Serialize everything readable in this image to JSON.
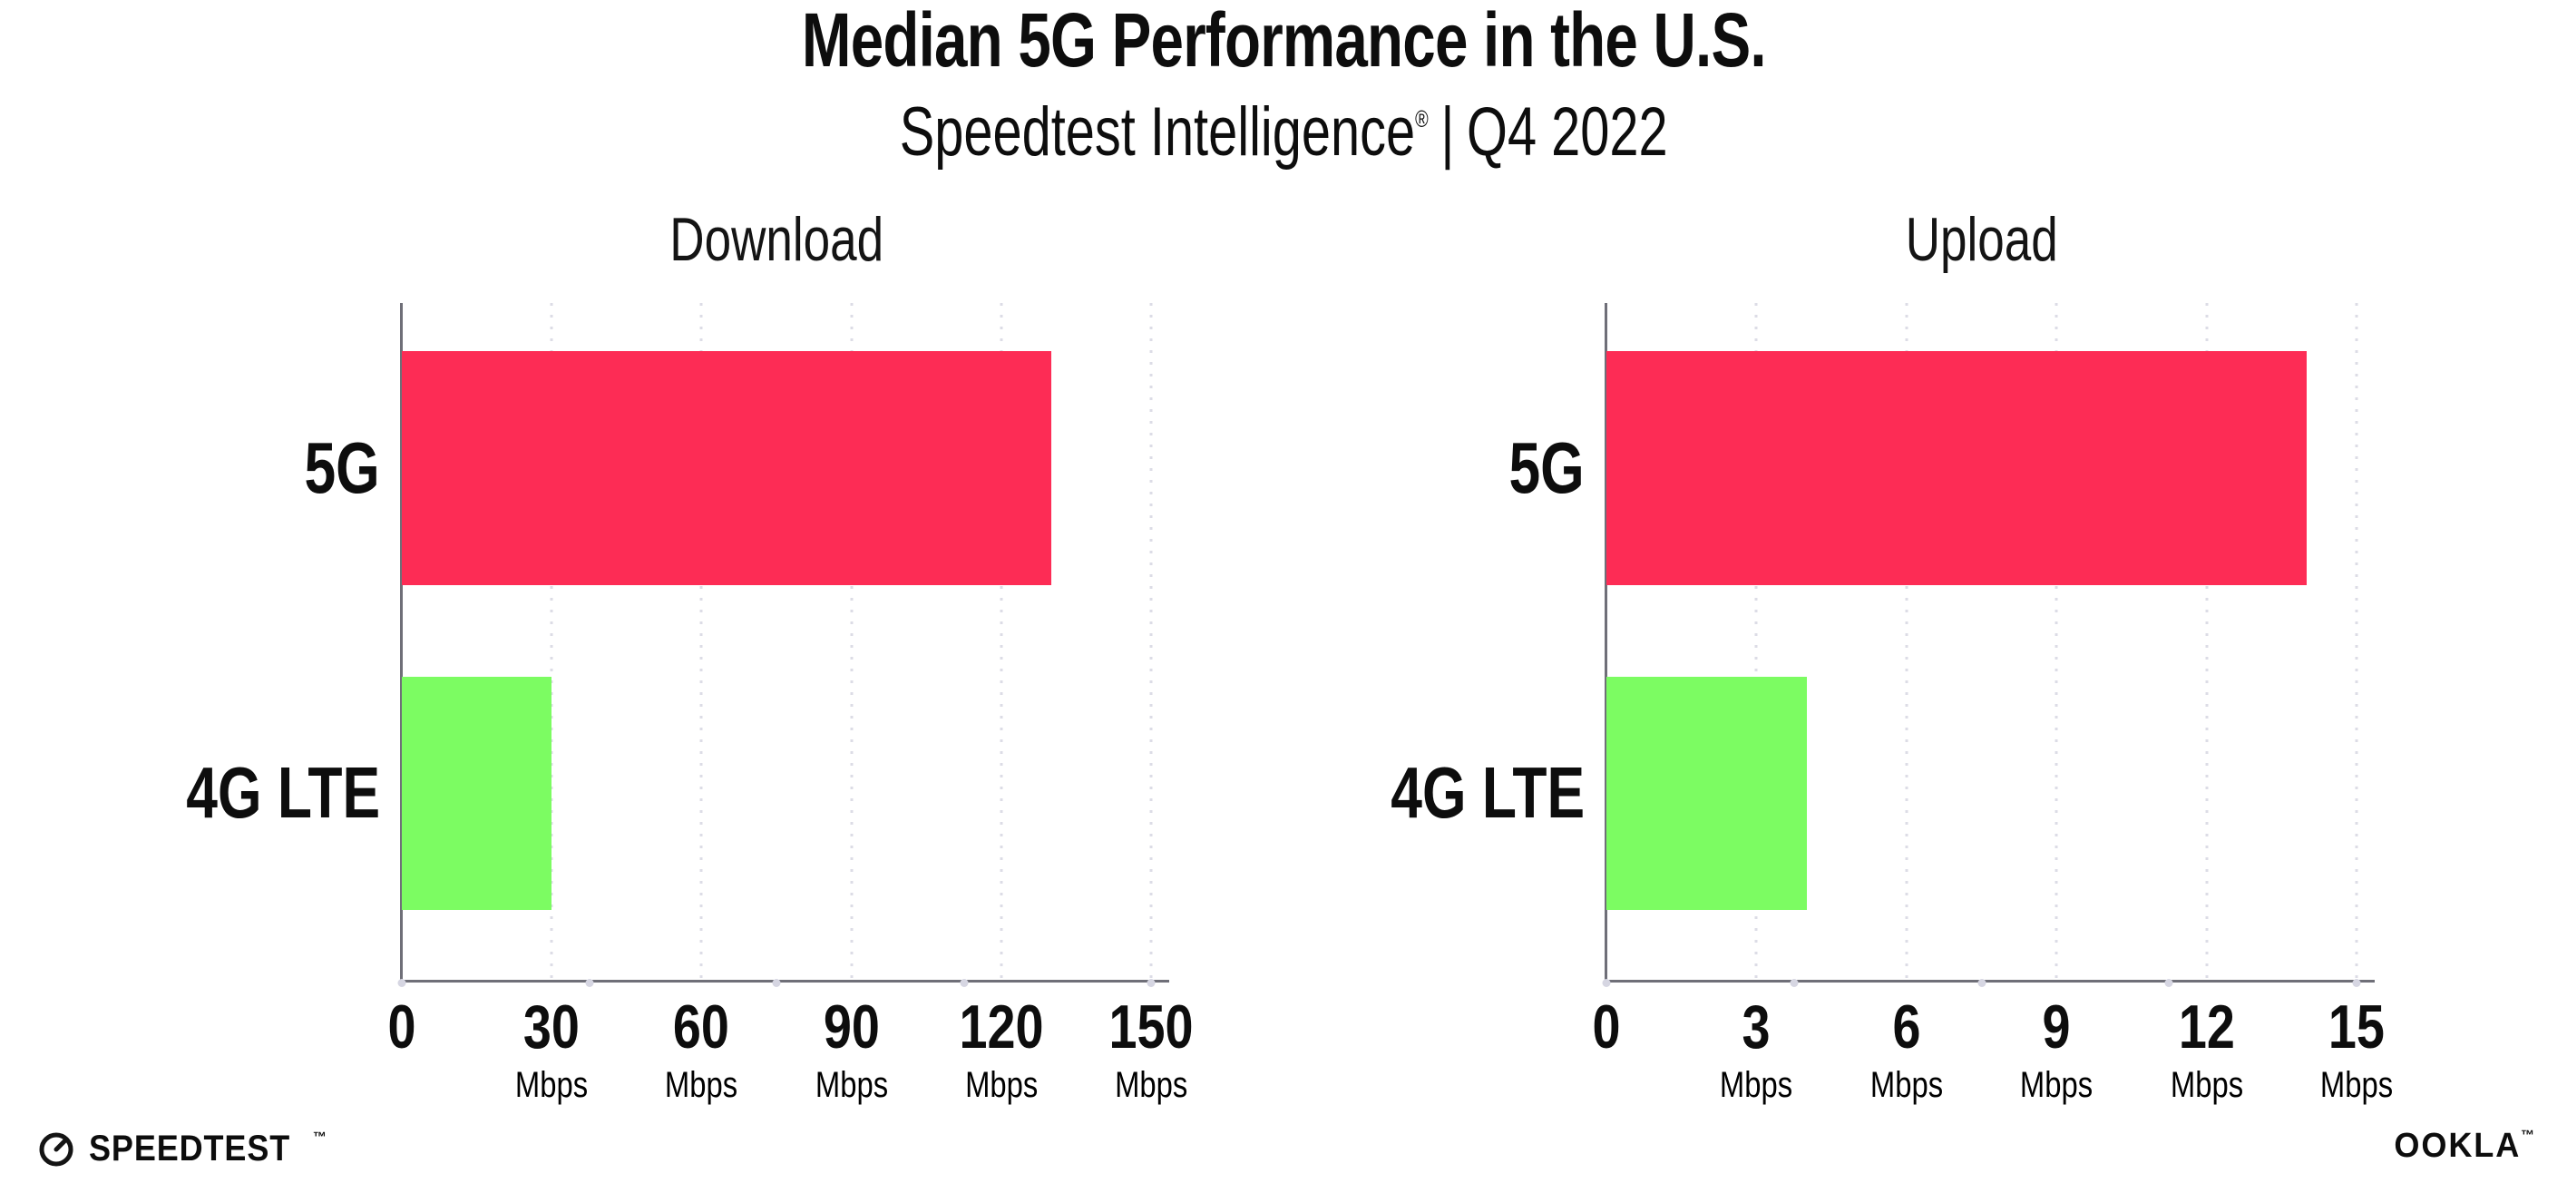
{
  "header": {
    "title": "Median 5G Performance in the U.S.",
    "subtitle_brand": "Speedtest Intelligence",
    "subtitle_reg": "®",
    "subtitle_sep": "|",
    "subtitle_period": "Q4 2022"
  },
  "colors": {
    "bar_5g": "#FD2C55",
    "bar_4g_lte": "#7CFC62",
    "axis_line": "#6F6F78",
    "gridline": "#DCDCE6",
    "tick_dot": "#D6D6E2"
  },
  "chart_data": [
    {
      "type": "bar",
      "orientation": "horizontal",
      "title": "Download",
      "categories": [
        "5G",
        "4G LTE"
      ],
      "values": [
        130,
        30
      ],
      "unit": "Mbps",
      "xlim": [
        0,
        150
      ],
      "xticks": [
        0,
        30,
        60,
        90,
        120,
        150
      ],
      "grid": "dotted-vertical",
      "legend": "none",
      "bar_colors": [
        "#FD2C55",
        "#7CFC62"
      ]
    },
    {
      "type": "bar",
      "orientation": "horizontal",
      "title": "Upload",
      "categories": [
        "5G",
        "4G LTE"
      ],
      "values": [
        14,
        4
      ],
      "unit": "Mbps",
      "xlim": [
        0,
        15
      ],
      "xticks": [
        0,
        3,
        6,
        9,
        12,
        15
      ],
      "grid": "dotted-vertical",
      "legend": "none",
      "bar_colors": [
        "#FD2C55",
        "#7CFC62"
      ]
    }
  ],
  "footer": {
    "speedtest_label": "SPEEDTEST",
    "speedtest_tm": "™",
    "ookla_label": "OOKLA",
    "ookla_tm": "™"
  }
}
